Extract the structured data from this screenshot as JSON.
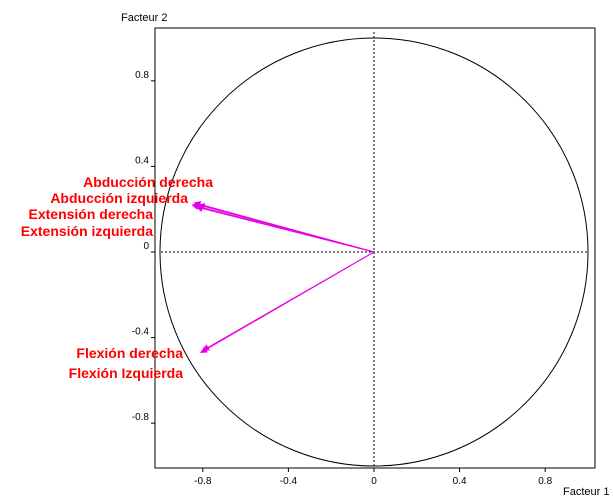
{
  "chart_data": {
    "type": "scatter",
    "subtype": "correlation-circle",
    "title": "",
    "xlabel": "Facteur 1",
    "ylabel": "Facteur 2",
    "xlim": [
      -1.0,
      1.0
    ],
    "ylim": [
      -1.0,
      1.0
    ],
    "x_ticks": [
      {
        "value": -0.8,
        "label": "-0.8"
      },
      {
        "value": -0.4,
        "label": "-0.4"
      },
      {
        "value": 0,
        "label": "0"
      },
      {
        "value": 0.4,
        "label": "0.4"
      },
      {
        "value": 0.8,
        "label": "0.8"
      }
    ],
    "y_ticks": [
      {
        "value": 0.8,
        "label": "0.8"
      },
      {
        "value": 0.4,
        "label": "0.4"
      },
      {
        "value": 0,
        "label": "0"
      },
      {
        "value": -0.4,
        "label": "-0.4"
      },
      {
        "value": -0.8,
        "label": "-0.8"
      }
    ],
    "unit_circle": true,
    "origin_lines": "dashed",
    "grid": false,
    "legend": "none",
    "colors": {
      "vector": "#e600e6",
      "label": "#ff0000",
      "frame": "#000000"
    },
    "vectors": [
      {
        "name": "Abducción derecha",
        "x": -0.84,
        "y": 0.23
      },
      {
        "name": "Abducción izquierda",
        "x": -0.85,
        "y": 0.22
      },
      {
        "name": "Extensión derecha",
        "x": -0.82,
        "y": 0.22
      },
      {
        "name": "Extensión izquierda",
        "x": -0.83,
        "y": 0.21
      },
      {
        "name": "Flexión derecha",
        "x": -0.81,
        "y": -0.47
      },
      {
        "name": "Flexión Izquierda",
        "x": -0.8,
        "y": -0.46
      }
    ]
  }
}
